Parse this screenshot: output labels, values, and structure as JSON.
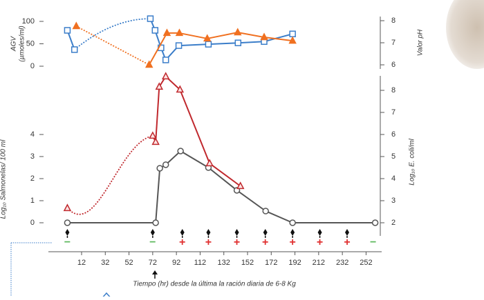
{
  "chart_data": [
    {
      "type": "line",
      "ylabel": [
        "AGV",
        "(µmoles/ml)"
      ],
      "y2label": "Valor pH",
      "xlim": [
        -16,
        264
      ],
      "ylim": [
        0,
        100
      ],
      "yticks": [
        0,
        50,
        100
      ],
      "y2lim": [
        6,
        8
      ],
      "y2ticks": [
        6,
        7,
        8
      ],
      "series": [
        {
          "color": "#3a7dc9",
          "marker": "square",
          "x": [
            0,
            6,
            70,
            74,
            79,
            83,
            94,
            119,
            144,
            166,
            190
          ],
          "values": [
            80,
            37,
            106,
            80,
            41,
            14,
            46,
            49,
            52,
            55,
            72
          ],
          "segments": [
            "solid",
            "dotted",
            "solid",
            "solid",
            "solid",
            "solid",
            "solid",
            "solid",
            "solid",
            "solid"
          ]
        },
        {
          "color": "#f07020",
          "marker": "triangle-filled",
          "axis": "y2",
          "x": [
            7.5,
            69,
            84,
            94.5,
            118,
            143.7,
            166,
            190
          ],
          "values": [
            7.75,
            6.0,
            7.44,
            7.44,
            7.19,
            7.47,
            7.25,
            7.09
          ],
          "segments": [
            "dotted",
            "solid",
            "solid",
            "solid",
            "solid",
            "solid",
            "solid"
          ]
        }
      ]
    },
    {
      "type": "line",
      "ylabel": "Log₁₀ Salmonelas/ 100 ml",
      "y2label": "Log₁₀ E. coli/ml",
      "xlabel": "Tiempo (hr) desde la última la ración diaria de 6-8 Kg",
      "xlim": [
        -16,
        264
      ],
      "xticks": [
        12,
        32,
        52,
        72,
        92,
        112,
        132,
        152,
        172,
        192,
        212,
        232,
        252
      ],
      "ylim": [
        0,
        4
      ],
      "yticks": [
        0,
        1,
        2,
        3,
        4
      ],
      "y2lim": [
        2,
        8
      ],
      "y2ticks": [
        2,
        3,
        4,
        5,
        6,
        7,
        8
      ],
      "series": [
        {
          "color": "#555555",
          "marker": "circle",
          "x": [
            0,
            74.5,
            78,
            83,
            95.5,
            119,
            143,
            167.3,
            190,
            259.7
          ],
          "values": [
            0,
            0,
            2.47,
            2.63,
            3.25,
            2.5,
            1.47,
            0.53,
            0,
            0
          ],
          "segments": [
            "solid",
            "solid",
            "solid",
            "solid",
            "solid",
            "solid",
            "solid",
            "solid",
            "solid"
          ]
        },
        {
          "color": "#c0282d",
          "marker": "triangle-open",
          "axis": "y2",
          "x": [
            0,
            72,
            74.5,
            77.5,
            83,
            95,
            120,
            146
          ],
          "values": [
            2.66,
            5.94,
            5.66,
            8.16,
            8.63,
            8.03,
            4.69,
            3.66
          ],
          "segments": [
            "dotted",
            "solid",
            "solid",
            "solid",
            "solid",
            "solid",
            "solid"
          ]
        }
      ],
      "treatments": {
        "x": [
          0,
          72,
          97,
          119,
          143,
          167,
          190,
          213,
          236,
          258
        ],
        "labels": [
          "−",
          "−",
          "+",
          "+",
          "+",
          "+",
          "+",
          "+",
          "+",
          "−"
        ],
        "colors": [
          "#5cb85c",
          "#5cb85c",
          "#e03030",
          "#e03030",
          "#e03030",
          "#e03030",
          "#e03030",
          "#e03030",
          "#e03030",
          "#5cb85c"
        ],
        "doses": [
          true,
          true,
          true,
          true,
          true,
          true,
          true,
          true,
          true,
          false
        ]
      }
    }
  ]
}
